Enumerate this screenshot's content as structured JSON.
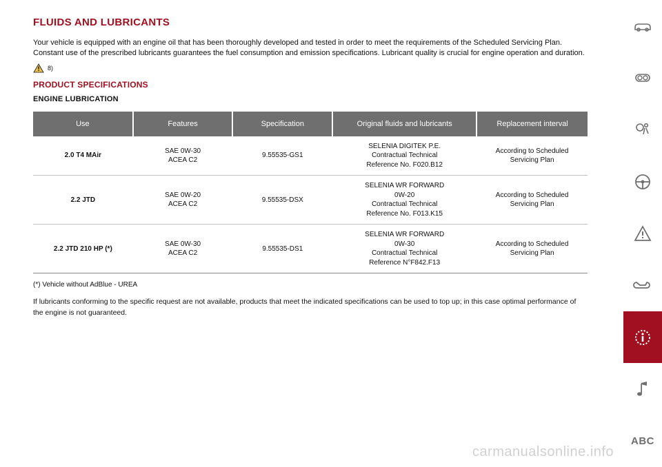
{
  "heading": "FLUIDS AND LUBRICANTS",
  "intro": "Your vehicle is equipped with an engine oil that has been thoroughly developed and tested in order to meet the requirements of the Scheduled Servicing Plan. Constant use of the prescribed lubricants guarantees the fuel consumption and emission specifications. Lubricant quality is crucial for engine operation and duration.",
  "warning_ref": "8)",
  "section_heading": "PRODUCT SPECIFICATIONS",
  "subsection_heading": "ENGINE LUBRICATION",
  "table": {
    "headers": [
      "Use",
      "Features",
      "Specification",
      "Original fluids and lubricants",
      "Replacement interval"
    ],
    "header_bg": "#6f6f6f",
    "header_fg": "#ffffff",
    "row_border": "#bfbfbf",
    "rows": [
      {
        "use": "2.0 T4 MAir",
        "features": "SAE 0W-30\nACEA C2",
        "spec": "9.55535-GS1",
        "orig": "SELENIA DIGITEK P.E.\nContractual Technical\nReference No. F020.B12",
        "repl": "According to Scheduled Servicing Plan"
      },
      {
        "use": "2.2 JTD",
        "features": "SAE 0W-20\nACEA C2",
        "spec": "9.55535-DSX",
        "orig": "SELENIA WR FORWARD\n0W-20\nContractual Technical\nReference No. F013.K15",
        "repl": "According to Scheduled Servicing Plan"
      },
      {
        "use": "2.2 JTD 210 HP (*)",
        "features": "SAE 0W-30\nACEA C2",
        "spec": "9.55535-DS1",
        "orig": "SELENIA WR FORWARD\n0W-30\nContractual Technical\nReference N°F842.F13",
        "repl": "According to Scheduled Servicing Plan"
      }
    ]
  },
  "footnote_marker": "(*) Vehicle without AdBlue - UREA",
  "footnote_body": "If lubricants conforming to the specific request are not available, products that meet the indicated specifications can be used to top up; in this case optimal performance of the engine is not guaranteed.",
  "sidebar": {
    "icon_color": "#6f6f6f",
    "active_bg": "#a01020",
    "active_fg": "#ffffff",
    "items": [
      {
        "name": "car-icon",
        "active": false
      },
      {
        "name": "dashboard-icon",
        "active": false
      },
      {
        "name": "airbag-icon",
        "active": false
      },
      {
        "name": "steering-icon",
        "active": false
      },
      {
        "name": "warning-triangle-icon",
        "active": false
      },
      {
        "name": "wrench-icon",
        "active": false
      },
      {
        "name": "info-icon",
        "active": true
      },
      {
        "name": "music-note-icon",
        "active": false
      },
      {
        "name": "abc-icon",
        "active": false,
        "label": "ABC"
      }
    ]
  },
  "watermark": "carmanualsonline.info",
  "colors": {
    "brand_red": "#a01020",
    "text": "#111111",
    "grey": "#6f6f6f"
  }
}
